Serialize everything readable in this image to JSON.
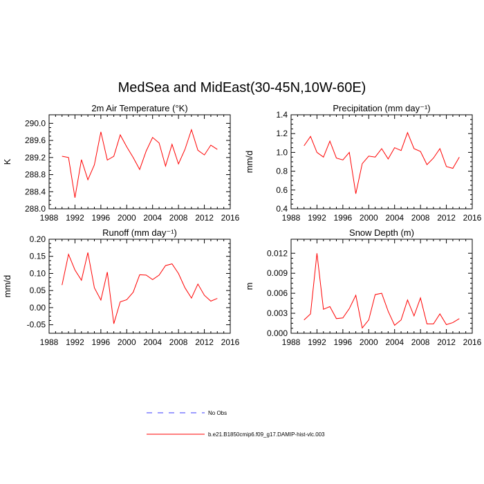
{
  "figure": {
    "title": "MedSea and MidEast(30-45N,10W-60E)"
  },
  "legend": [
    {
      "label": "No Obs",
      "color": "#3b3bff",
      "style": "dashed"
    },
    {
      "label": "b.e21.B1850cmip6.f09_g17.DAMIP-hist-vlc.003",
      "color": "#ff0000",
      "style": "solid"
    }
  ],
  "chart_data": [
    {
      "type": "line",
      "title": "2m Air Temperature",
      "title_unit": "(°K)",
      "ylabel": "K",
      "xlim": [
        1988,
        2016
      ],
      "ylim": [
        288.0,
        290.2
      ],
      "xticks": [
        1988,
        1992,
        1996,
        2000,
        2004,
        2008,
        2012,
        2016
      ],
      "yticks": [
        288.0,
        288.4,
        288.8,
        289.2,
        289.6,
        290.0
      ],
      "ytick_labels": [
        "288.0",
        "288.4",
        "288.8",
        "289.2",
        "289.6",
        "290.0"
      ],
      "x": [
        1990,
        1991,
        1992,
        1993,
        1994,
        1995,
        1996,
        1997,
        1998,
        1999,
        2000,
        2001,
        2002,
        2003,
        2004,
        2005,
        2006,
        2007,
        2008,
        2009,
        2010,
        2011,
        2012,
        2013,
        2014
      ],
      "series": [
        {
          "name": "b.e21.B1850cmip6.f09_g17.DAMIP-hist-vlc.003",
          "color": "#ff0000",
          "values": [
            289.23,
            289.2,
            288.26,
            289.15,
            288.68,
            289.03,
            289.8,
            289.14,
            289.23,
            289.73,
            289.45,
            289.2,
            288.92,
            289.35,
            289.67,
            289.54,
            289.0,
            289.51,
            289.05,
            289.39,
            289.85,
            289.37,
            289.26,
            289.49,
            289.39
          ]
        }
      ]
    },
    {
      "type": "line",
      "title": "Precipitation",
      "title_unit": "(mm day⁻¹)",
      "ylabel": "mm/d",
      "xlim": [
        1988,
        2016
      ],
      "ylim": [
        0.4,
        1.4
      ],
      "xticks": [
        1988,
        1992,
        1996,
        2000,
        2004,
        2008,
        2012,
        2016
      ],
      "yticks": [
        0.4,
        0.6,
        0.8,
        1.0,
        1.2,
        1.4
      ],
      "ytick_labels": [
        "0.4",
        "0.6",
        "0.8",
        "1.0",
        "1.2",
        "1.4"
      ],
      "x": [
        1990,
        1991,
        1992,
        1993,
        1994,
        1995,
        1996,
        1997,
        1998,
        1999,
        2000,
        2001,
        2002,
        2003,
        2004,
        2005,
        2006,
        2007,
        2008,
        2009,
        2010,
        2011,
        2012,
        2013,
        2014
      ],
      "series": [
        {
          "name": "b.e21.B1850cmip6.f09_g17.DAMIP-hist-vlc.003",
          "color": "#ff0000",
          "values": [
            1.07,
            1.17,
            1.0,
            0.95,
            1.12,
            0.94,
            0.92,
            1.0,
            0.56,
            0.88,
            0.96,
            0.95,
            1.04,
            0.93,
            1.05,
            1.02,
            1.21,
            1.04,
            1.01,
            0.87,
            0.94,
            1.04,
            0.85,
            0.83,
            0.95
          ]
        }
      ]
    },
    {
      "type": "line",
      "title": "Runoff",
      "title_unit": "(mm day⁻¹)",
      "ylabel": "mm/d",
      "xlim": [
        1988,
        2016
      ],
      "ylim": [
        -0.075,
        0.2
      ],
      "xticks": [
        1988,
        1992,
        1996,
        2000,
        2004,
        2008,
        2012,
        2016
      ],
      "yticks": [
        -0.05,
        0.0,
        0.05,
        0.1,
        0.15,
        0.2
      ],
      "ytick_labels": [
        "-0.05",
        "0.00",
        "0.05",
        "0.10",
        "0.15",
        "0.20"
      ],
      "x": [
        1990,
        1991,
        1992,
        1993,
        1994,
        1995,
        1996,
        1997,
        1998,
        1999,
        2000,
        2001,
        2002,
        2003,
        2004,
        2005,
        2006,
        2007,
        2008,
        2009,
        2010,
        2011,
        2012,
        2013,
        2014
      ],
      "series": [
        {
          "name": "b.e21.B1850cmip6.f09_g17.DAMIP-hist-vlc.003",
          "color": "#ff0000",
          "values": [
            0.066,
            0.156,
            0.11,
            0.08,
            0.161,
            0.058,
            0.022,
            0.104,
            -0.047,
            0.017,
            0.023,
            0.045,
            0.096,
            0.095,
            0.082,
            0.095,
            0.123,
            0.128,
            0.1,
            0.058,
            0.028,
            0.069,
            0.036,
            0.019,
            0.027
          ]
        }
      ]
    },
    {
      "type": "line",
      "title": "Snow Depth (m)",
      "title_unit": "",
      "ylabel": "m",
      "xlim": [
        1988,
        2016
      ],
      "ylim": [
        0.0,
        0.0141
      ],
      "xticks": [
        1988,
        1992,
        1996,
        2000,
        2004,
        2008,
        2012,
        2016
      ],
      "yticks": [
        0.0,
        0.003,
        0.006,
        0.009,
        0.012
      ],
      "ytick_labels": [
        "0.000",
        "0.003",
        "0.006",
        "0.009",
        "0.012"
      ],
      "x": [
        1990,
        1991,
        1992,
        1993,
        1994,
        1995,
        1996,
        1997,
        1998,
        1999,
        2000,
        2001,
        2002,
        2003,
        2004,
        2005,
        2006,
        2007,
        2008,
        2009,
        2010,
        2011,
        2012,
        2013,
        2014
      ],
      "series": [
        {
          "name": "b.e21.B1850cmip6.f09_g17.DAMIP-hist-vlc.003",
          "color": "#ff0000",
          "values": [
            0.002,
            0.0029,
            0.012,
            0.0036,
            0.004,
            0.0022,
            0.0023,
            0.0037,
            0.0057,
            0.0008,
            0.002,
            0.0058,
            0.006,
            0.0033,
            0.0012,
            0.002,
            0.005,
            0.0026,
            0.0053,
            0.0014,
            0.0014,
            0.0029,
            0.0013,
            0.0016,
            0.0022
          ]
        }
      ]
    }
  ]
}
